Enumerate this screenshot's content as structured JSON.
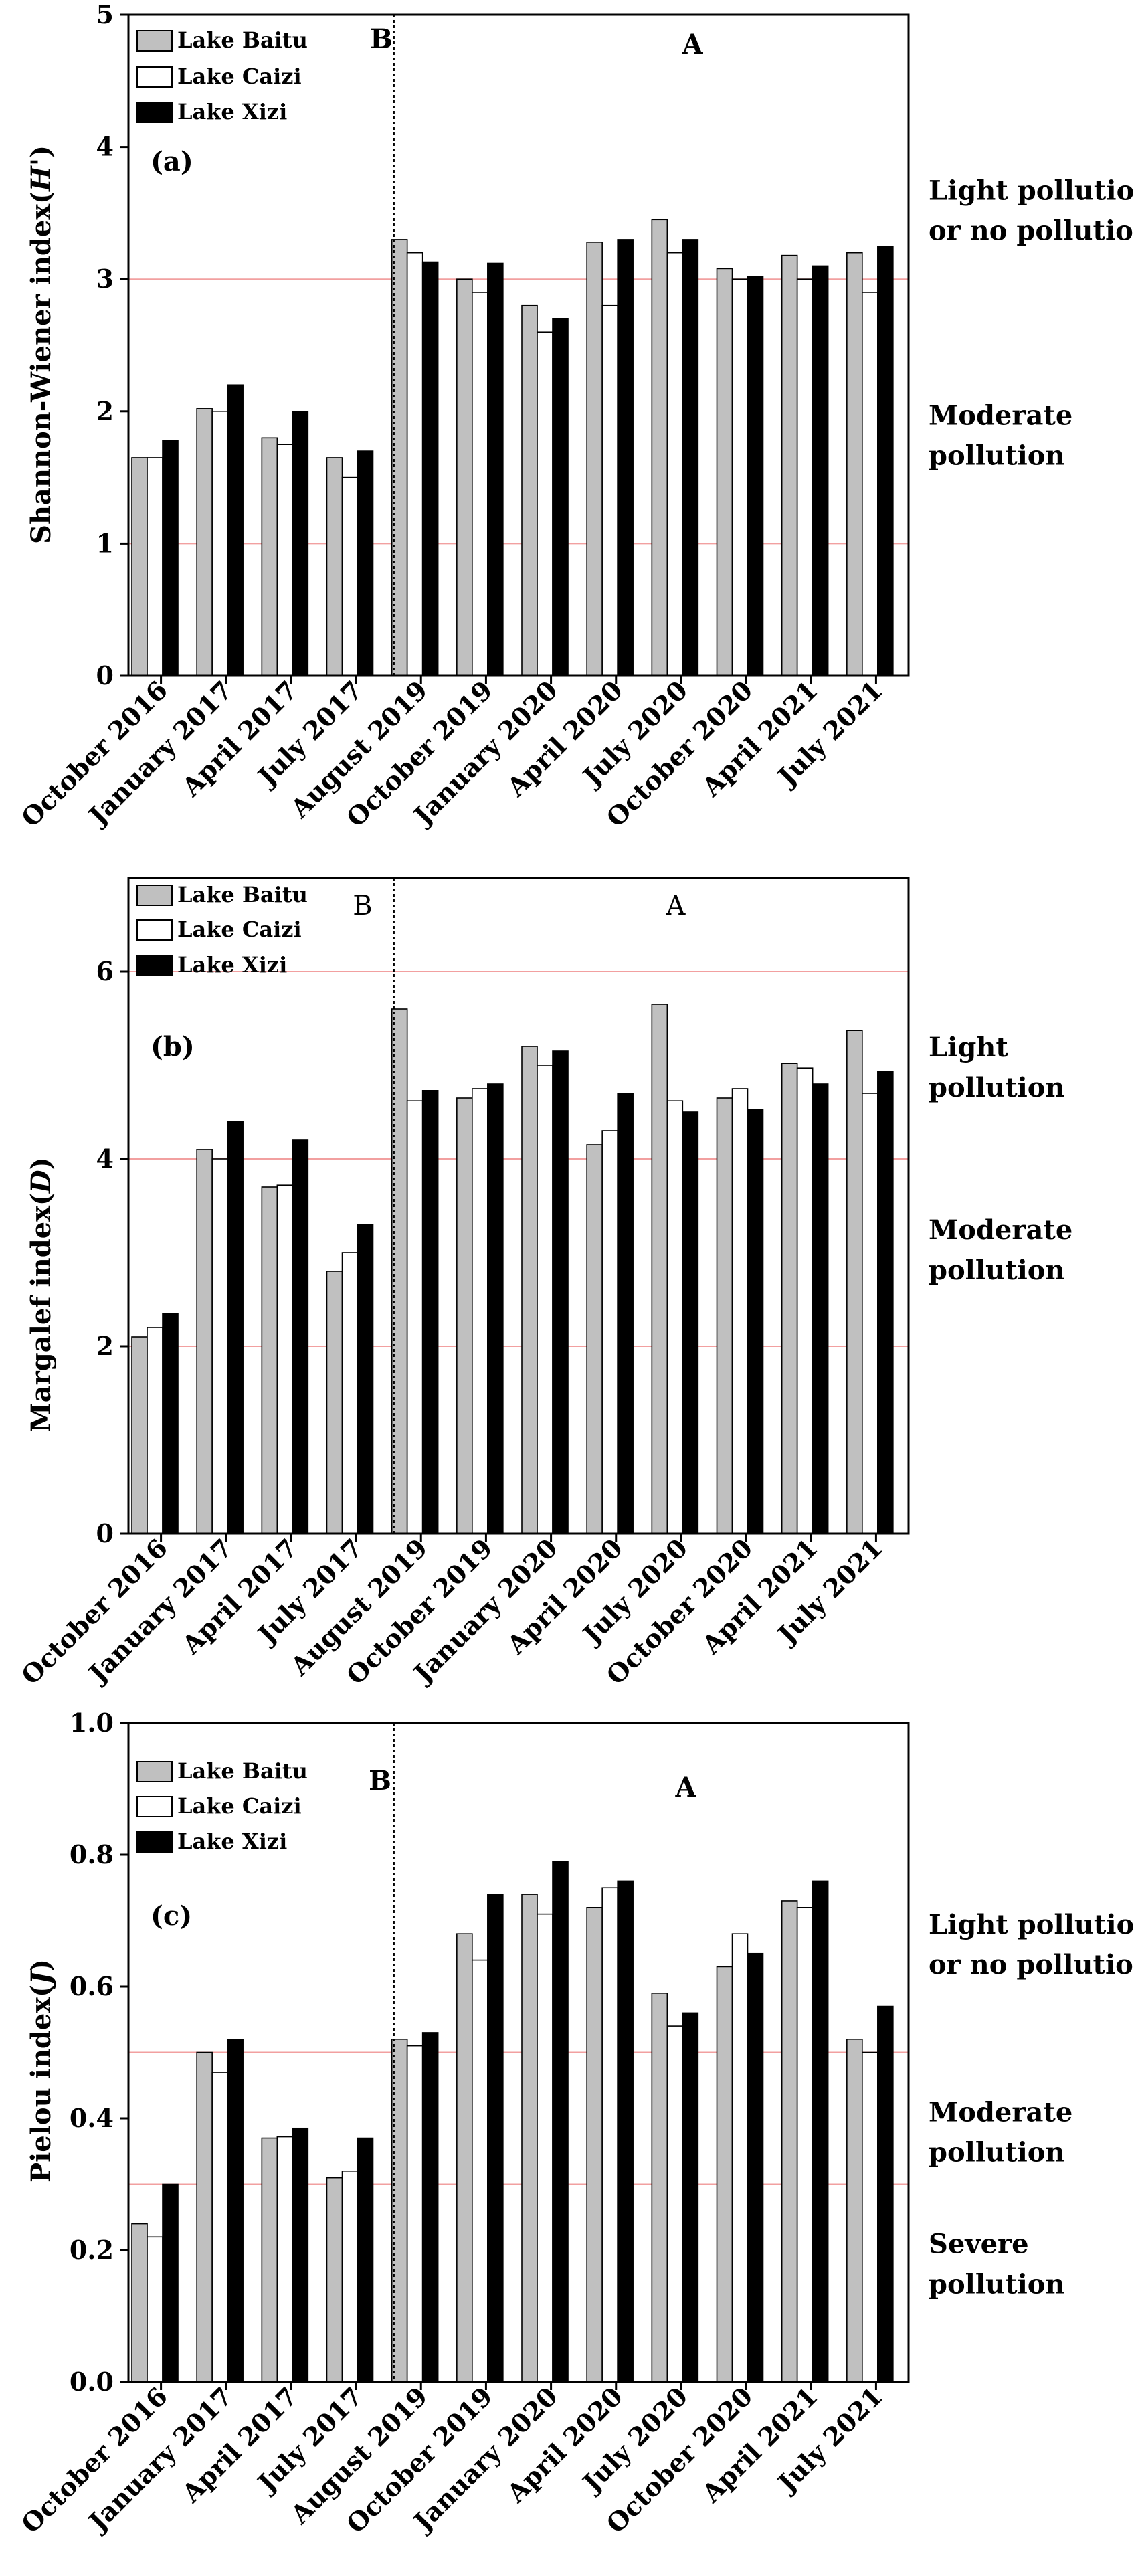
{
  "categories": [
    "October 2016",
    "January 2017",
    "April 2017",
    "July 2017",
    "August 2019",
    "October 2019",
    "January 2020",
    "April 2020",
    "July 2020",
    "October 2020",
    "April 2021",
    "July 2021"
  ],
  "series_names": [
    "Lake Baitu",
    "Lake Caizi",
    "Lake Xizi"
  ],
  "series_colors": [
    "#c0c0c0",
    "#ffffff",
    "#000000"
  ],
  "chart_data": [
    {
      "type": "bar",
      "panel_label": "(a)",
      "ylabel": "Shannon-Wiener index",
      "ylabel_symbol": "H'",
      "ylim": [
        0,
        5
      ],
      "yticks": [
        0,
        1,
        2,
        3,
        4,
        5
      ],
      "reference_lines": [
        1,
        3
      ],
      "period_labels": [
        "B",
        "A"
      ],
      "pollution_labels": [
        {
          "lines": [
            "Light pollution",
            "or no pollution"
          ],
          "y": 3.5
        },
        {
          "lines": [
            "Moderate",
            "pollution"
          ],
          "y": 1.8
        }
      ],
      "series": [
        {
          "name": "Lake Baitu",
          "values": [
            1.65,
            2.02,
            1.8,
            1.65,
            3.3,
            3.0,
            2.8,
            3.28,
            3.45,
            3.08,
            3.18,
            3.2
          ]
        },
        {
          "name": "Lake Caizi",
          "values": [
            1.65,
            2.0,
            1.75,
            1.5,
            3.2,
            2.9,
            2.6,
            2.8,
            3.2,
            3.0,
            3.0,
            2.9
          ]
        },
        {
          "name": "Lake Xizi",
          "values": [
            1.78,
            2.2,
            2.0,
            1.7,
            3.13,
            3.12,
            2.7,
            3.3,
            3.3,
            3.02,
            3.1,
            3.25
          ]
        }
      ]
    },
    {
      "type": "bar",
      "panel_label": "(b)",
      "ylabel": "Margalef index",
      "ylabel_symbol": "D",
      "ylim": [
        0,
        7
      ],
      "yticks": [
        0,
        2,
        4,
        6
      ],
      "reference_lines": [
        2,
        4,
        6
      ],
      "period_labels": [
        "B",
        "A"
      ],
      "pollution_labels": [
        {
          "lines": [
            "Light",
            "pollution"
          ],
          "y": 4.95
        },
        {
          "lines": [
            "Moderate",
            "pollution"
          ],
          "y": 3.0
        }
      ],
      "series": [
        {
          "name": "Lake Baitu",
          "values": [
            2.1,
            4.1,
            3.7,
            2.8,
            5.6,
            4.65,
            5.2,
            4.15,
            5.65,
            4.65,
            5.02,
            5.37
          ]
        },
        {
          "name": "Lake Caizi",
          "values": [
            2.2,
            4.0,
            3.72,
            3.0,
            4.62,
            4.75,
            5.0,
            4.3,
            4.62,
            4.75,
            4.97,
            4.7
          ]
        },
        {
          "name": "Lake Xizi",
          "values": [
            2.35,
            4.4,
            4.2,
            3.3,
            4.73,
            4.8,
            5.15,
            4.7,
            4.5,
            4.53,
            4.8,
            4.93
          ]
        }
      ]
    },
    {
      "type": "bar",
      "panel_label": "(c)",
      "ylabel": "Pielou index",
      "ylabel_symbol": "J",
      "ylim": [
        0,
        1.0
      ],
      "yticks": [
        "0.0",
        "0.2",
        "0.4",
        "0.6",
        "0.8",
        "1.0"
      ],
      "reference_lines": [
        0.3,
        0.5
      ],
      "period_labels": [
        "B",
        "A"
      ],
      "pollution_labels": [
        {
          "lines": [
            "Light pollution",
            "or no pollution"
          ],
          "y": 0.66
        },
        {
          "lines": [
            "Moderate",
            "pollution"
          ],
          "y": 0.375
        },
        {
          "lines": [
            "Severe",
            "pollution"
          ],
          "y": 0.175
        }
      ],
      "series": [
        {
          "name": "Lake Baitu",
          "values": [
            0.24,
            0.5,
            0.37,
            0.31,
            0.52,
            0.68,
            0.74,
            0.72,
            0.59,
            0.63,
            0.73,
            0.52
          ]
        },
        {
          "name": "Lake Caizi",
          "values": [
            0.22,
            0.47,
            0.372,
            0.32,
            0.51,
            0.64,
            0.71,
            0.75,
            0.54,
            0.68,
            0.72,
            0.5
          ]
        },
        {
          "name": "Lake Xizi",
          "values": [
            0.3,
            0.52,
            0.385,
            0.37,
            0.53,
            0.74,
            0.79,
            0.76,
            0.56,
            0.65,
            0.76,
            0.57
          ]
        }
      ]
    }
  ]
}
